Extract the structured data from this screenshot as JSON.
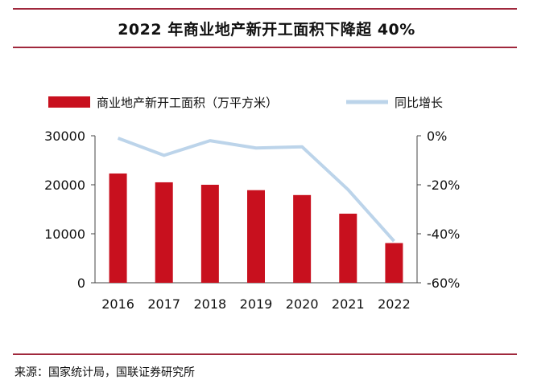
{
  "title": "2022 年商业地产新开工面积下降超 40%",
  "source": "来源：国家统计局，国联证券研究所",
  "colors": {
    "rule": "#a0283c",
    "bar": "#c8101e",
    "line": "#bcd4ea",
    "axis": "#444444"
  },
  "chart_data": {
    "type": "bar+line",
    "categories": [
      "2016",
      "2017",
      "2018",
      "2019",
      "2020",
      "2021",
      "2022"
    ],
    "series": [
      {
        "name": "商业地产新开工面积（万平方米）",
        "type": "bar",
        "axis": "left",
        "values": [
          22300,
          20500,
          20000,
          18900,
          17900,
          14100,
          8100
        ]
      },
      {
        "name": "同比增长",
        "type": "line",
        "axis": "right",
        "values": [
          -1,
          -8,
          -2,
          -5,
          -4.5,
          -22,
          -43
        ]
      }
    ],
    "y_left": {
      "min": 0,
      "max": 30000,
      "ticks": [
        "0",
        "10000",
        "20000",
        "30000"
      ]
    },
    "y_right": {
      "min": -60,
      "max": 0,
      "ticks": [
        "-60%",
        "-40%",
        "-20%",
        "0%"
      ]
    },
    "legend_position": "top",
    "grid": false
  }
}
